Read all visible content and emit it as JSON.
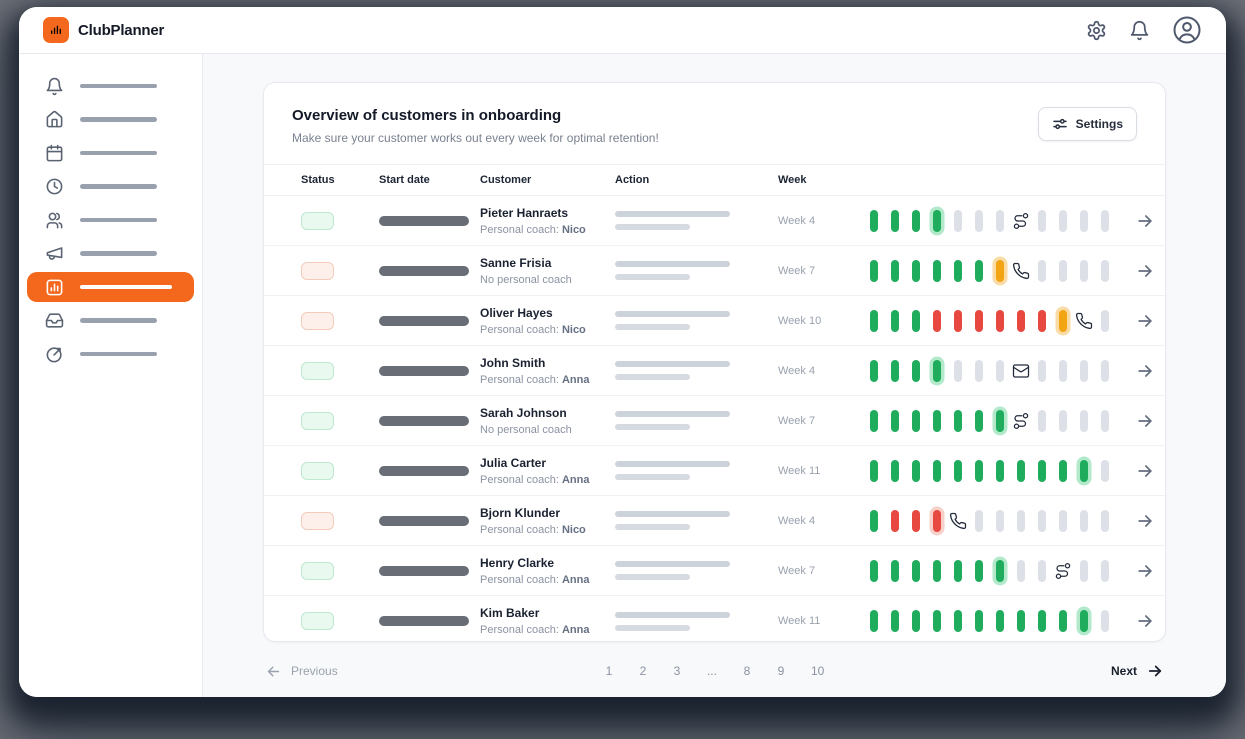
{
  "app": {
    "brand": "ClubPlanner"
  },
  "sidebar": {
    "items": [
      {
        "icon": "bell",
        "active": false
      },
      {
        "icon": "home",
        "active": false
      },
      {
        "icon": "calendar",
        "active": false
      },
      {
        "icon": "clock",
        "active": false
      },
      {
        "icon": "users",
        "active": false
      },
      {
        "icon": "megaphone",
        "active": false
      },
      {
        "icon": "chart",
        "active": true
      },
      {
        "icon": "inbox",
        "active": false
      },
      {
        "icon": "goal",
        "active": false
      }
    ]
  },
  "overview": {
    "title": "Overview of customers in onboarding",
    "subtitle": "Make sure your customer works out every week for optimal retention!",
    "settings_button": "Settings",
    "columns": [
      "Status",
      "Start date",
      "Customer",
      "Action",
      "Week"
    ],
    "rows": [
      {
        "name": "Pieter Hanraets",
        "coach_label": "Personal coach:",
        "coach_name": "Nico",
        "status": "ok",
        "week_label": "Week 4",
        "pills": [
          "done",
          "done",
          "done",
          "current-ok",
          "future",
          "future",
          "future",
          "icon:route",
          "future",
          "future",
          "future",
          "future"
        ]
      },
      {
        "name": "Sanne Frisia",
        "coach_label": "No personal coach",
        "coach_name": "",
        "status": "alert",
        "week_label": "Week 7",
        "pills": [
          "done",
          "done",
          "done",
          "done",
          "done",
          "done",
          "current-warn",
          "icon:phone",
          "future",
          "future",
          "future",
          "future"
        ]
      },
      {
        "name": "Oliver Hayes",
        "coach_label": "Personal coach:",
        "coach_name": "Nico",
        "status": "alert",
        "week_label": "Week 10",
        "pills": [
          "done",
          "done",
          "done",
          "missed",
          "missed",
          "missed",
          "missed",
          "missed",
          "missed",
          "current-warn",
          "icon:phone",
          "future"
        ]
      },
      {
        "name": "John Smith",
        "coach_label": "Personal coach:",
        "coach_name": "Anna",
        "status": "ok",
        "week_label": "Week 4",
        "pills": [
          "done",
          "done",
          "done",
          "current-ok",
          "future",
          "future",
          "future",
          "icon:mail",
          "future",
          "future",
          "future",
          "future"
        ]
      },
      {
        "name": "Sarah Johnson",
        "coach_label": "No personal coach",
        "coach_name": "",
        "status": "ok",
        "week_label": "Week 7",
        "pills": [
          "done",
          "done",
          "done",
          "done",
          "done",
          "done",
          "current-ok",
          "icon:route",
          "future",
          "future",
          "future",
          "future"
        ]
      },
      {
        "name": "Julia Carter",
        "coach_label": "Personal coach:",
        "coach_name": "Anna",
        "status": "ok",
        "week_label": "Week 11",
        "pills": [
          "done",
          "done",
          "done",
          "done",
          "done",
          "done",
          "done",
          "done",
          "done",
          "done",
          "current-ok",
          "future"
        ]
      },
      {
        "name": "Bjorn Klunder",
        "coach_label": "Personal coach:",
        "coach_name": "Nico",
        "status": "alert",
        "week_label": "Week 4",
        "pills": [
          "done",
          "missed",
          "missed",
          "current-missed",
          "icon:phone",
          "future",
          "future",
          "future",
          "future",
          "future",
          "future",
          "future"
        ]
      },
      {
        "name": "Henry Clarke",
        "coach_label": "Personal coach:",
        "coach_name": "Anna",
        "status": "ok",
        "week_label": "Week 7",
        "pills": [
          "done",
          "done",
          "done",
          "done",
          "done",
          "done",
          "current-ok",
          "future",
          "future",
          "icon:route",
          "future",
          "future"
        ]
      },
      {
        "name": "Kim Baker",
        "coach_label": "Personal coach:",
        "coach_name": "Anna",
        "status": "ok",
        "week_label": "Week 11",
        "pills": [
          "done",
          "done",
          "done",
          "done",
          "done",
          "done",
          "done",
          "done",
          "done",
          "done",
          "current-ok",
          "future"
        ]
      }
    ]
  },
  "pagination": {
    "previous_label": "Previous",
    "pages": [
      "1",
      "2",
      "3",
      "...",
      "8",
      "9",
      "10"
    ],
    "next_label": "Next"
  },
  "colors": {
    "accent_orange": "#F4681D",
    "pill_green": "#1FAC5C",
    "pill_red": "#E74840",
    "pill_amber": "#F2A413",
    "pill_inactive": "#DDE1E7",
    "halo_green": "#B2E9CB",
    "halo_amber": "#F9DBA6",
    "halo_red": "#F7D0CA",
    "status_ok_bg": "#E9F9F0",
    "status_ok_border": "#BEE9CE",
    "status_alert_bg": "#FDF0EA",
    "status_alert_border": "#F3CCBC"
  }
}
